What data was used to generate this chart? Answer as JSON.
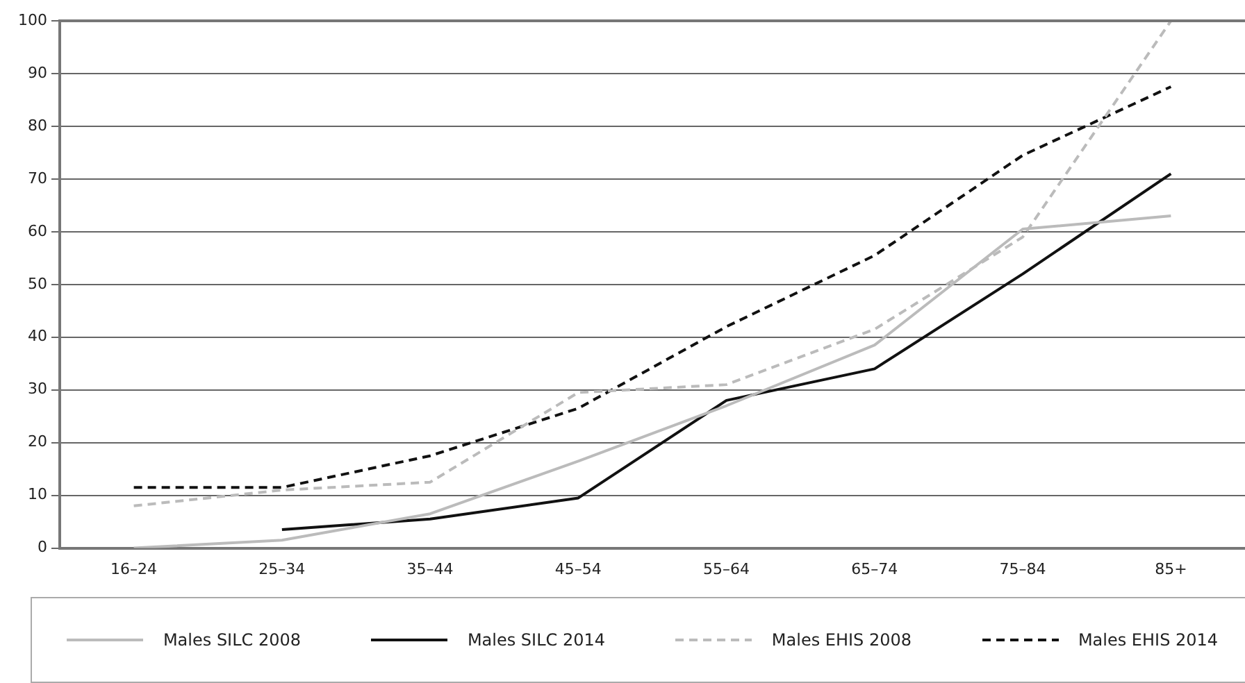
{
  "chart_data": {
    "type": "line",
    "categories": [
      "16–24",
      "25–34",
      "35–44",
      "45–54",
      "55–64",
      "65–74",
      "75–84",
      "85+"
    ],
    "series": [
      {
        "name": "Males SILC 2008",
        "color": "#bbbbbb",
        "line_style": "solid",
        "values": [
          0,
          1.5,
          6.5,
          16.5,
          27,
          38.5,
          60.5,
          63
        ]
      },
      {
        "name": "Males SILC 2014",
        "color": "#111111",
        "line_style": "solid",
        "values": [
          null,
          3.5,
          5.5,
          9.5,
          28,
          34,
          52,
          71
        ]
      },
      {
        "name": "Males EHIS 2008",
        "color": "#bbbbbb",
        "line_style": "dashed",
        "values": [
          8,
          11,
          12.5,
          29.5,
          31,
          41.5,
          59,
          100
        ]
      },
      {
        "name": "Males EHIS 2014",
        "color": "#111111",
        "line_style": "dashed",
        "values": [
          11.5,
          11.5,
          17.5,
          26.5,
          42,
          55.5,
          74.5,
          87.5
        ]
      }
    ],
    "ylim": [
      0,
      100
    ],
    "yticks": [
      0,
      10,
      20,
      30,
      40,
      50,
      60,
      70,
      80,
      90,
      100
    ],
    "grid": "y",
    "legend": "bottom",
    "marker": "none"
  }
}
